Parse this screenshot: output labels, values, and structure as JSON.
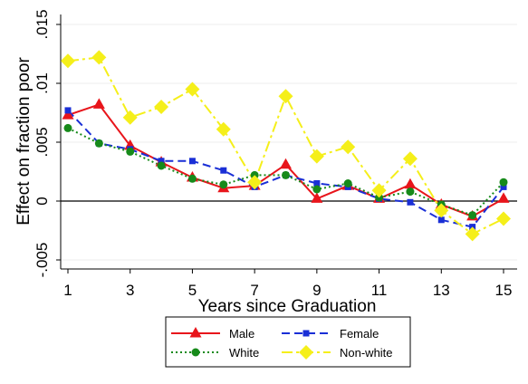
{
  "chart_data": {
    "type": "line",
    "xlabel": "Years since Graduation",
    "ylabel": "Effect on fraction poor",
    "xlim": [
      1,
      15
    ],
    "ylim": [
      -0.006,
      0.0155
    ],
    "x_ticks": [
      1,
      3,
      5,
      7,
      9,
      11,
      13,
      15
    ],
    "y_ticks": [
      {
        "value": -0.005,
        "label": "-.005"
      },
      {
        "value": 0,
        "label": "0"
      },
      {
        "value": 0.005,
        "label": ".005"
      },
      {
        "value": 0.01,
        "label": ".01"
      },
      {
        "value": 0.015,
        "label": ".015"
      }
    ],
    "grid": "horizontal",
    "reference_line": 0,
    "legend_position": "bottom",
    "x": [
      1,
      2,
      3,
      4,
      5,
      6,
      7,
      8,
      9,
      10,
      11,
      12,
      13,
      14,
      15
    ],
    "series": [
      {
        "name": "Male",
        "color": "#e8151b",
        "dash": "none",
        "marker": "triangle",
        "values": [
          0.0073,
          0.0082,
          0.0047,
          0.0033,
          0.002,
          0.0011,
          0.0013,
          0.0031,
          0.0002,
          0.0013,
          0.0002,
          0.0014,
          -0.0003,
          -0.0013,
          0.0002
        ]
      },
      {
        "name": "Female",
        "color": "#1a2fd6",
        "dash": "9,5",
        "marker": "square",
        "values": [
          0.0077,
          0.0049,
          0.0044,
          0.0034,
          0.0034,
          0.0026,
          0.0012,
          0.0022,
          0.0015,
          0.0012,
          0.0002,
          -0.0001,
          -0.0016,
          -0.0022,
          0.0012
        ]
      },
      {
        "name": "White",
        "color": "#168a1a",
        "dash": "2,3",
        "marker": "circle",
        "values": [
          0.0062,
          0.0049,
          0.0042,
          0.003,
          0.0019,
          0.0014,
          0.0022,
          0.0022,
          0.001,
          0.0015,
          0.0003,
          0.0008,
          -0.0003,
          -0.0012,
          0.0016
        ]
      },
      {
        "name": "Non-white",
        "color": "#f5ef1a",
        "dash": "12,4,3,4",
        "marker": "diamond",
        "values": [
          0.0119,
          0.0122,
          0.0071,
          0.008,
          0.0095,
          0.0061,
          0.0016,
          0.0089,
          0.0038,
          0.0046,
          0.0009,
          0.0036,
          -0.0008,
          -0.0028,
          -0.0015
        ]
      }
    ]
  }
}
